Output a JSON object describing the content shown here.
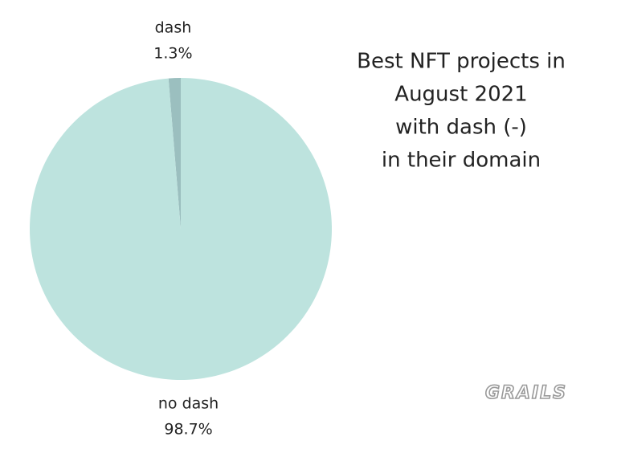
{
  "chart_data": {
    "type": "pie",
    "title": [
      "Best NFT projects in",
      "August 2021",
      "with dash (-)",
      "in their domain"
    ],
    "categories": [
      "dash",
      "no dash"
    ],
    "values": [
      1.3,
      98.7
    ],
    "value_labels": [
      "1.3%",
      "98.7%"
    ],
    "colors": [
      "#9bbfbf",
      "#bde3de"
    ],
    "watermark": "GRAILS"
  }
}
